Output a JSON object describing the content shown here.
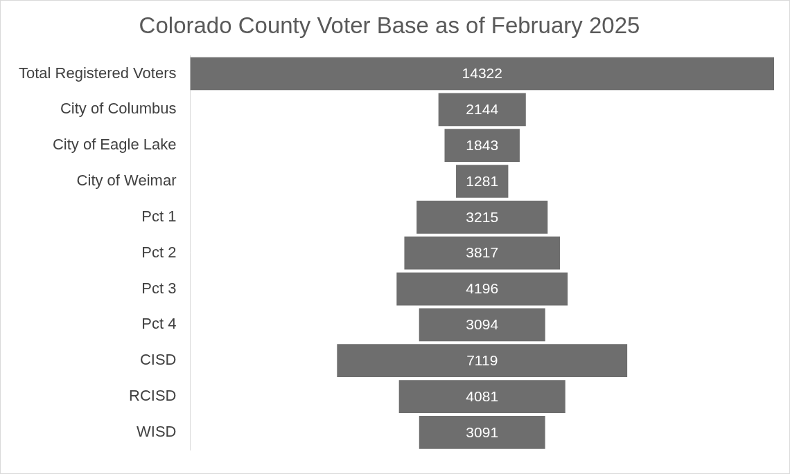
{
  "chart_data": {
    "type": "bar",
    "title": "Colorado County Voter Base as of February 2025",
    "categories": [
      "Total Registered Voters",
      "City of Columbus",
      "City of Eagle Lake",
      "City of Weimar",
      "Pct 1",
      "Pct 2",
      "Pct 3",
      "Pct 4",
      "CISD",
      "RCISD",
      "WISD"
    ],
    "values": [
      14322,
      2144,
      1843,
      1281,
      3215,
      3817,
      4196,
      3094,
      7119,
      4081,
      3091
    ],
    "color": "#6e6e6e",
    "orientation": "horizontal",
    "data_labels": true,
    "tick_labels": "y",
    "grid": false
  }
}
